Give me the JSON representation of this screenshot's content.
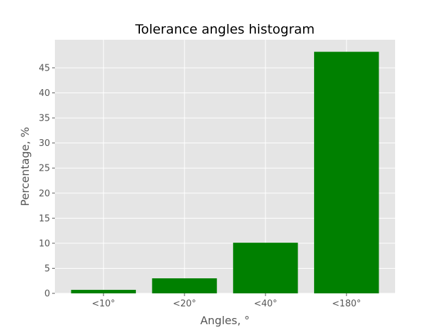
{
  "chart_data": {
    "type": "bar",
    "title": "Tolerance angles histogram",
    "xlabel": "Angles, °",
    "ylabel": "Percentage, %",
    "categories": [
      "<10°",
      "<20°",
      "<40°",
      "<180°"
    ],
    "values": [
      0.7,
      3.0,
      10.1,
      48.2
    ],
    "ylim": [
      0,
      50.6
    ],
    "yticks": [
      0,
      5,
      10,
      15,
      20,
      25,
      30,
      35,
      40,
      45
    ],
    "grid": true,
    "bar_color": "#008000",
    "plot_background": "#e5e5e5",
    "grid_color": "#ffffff"
  }
}
